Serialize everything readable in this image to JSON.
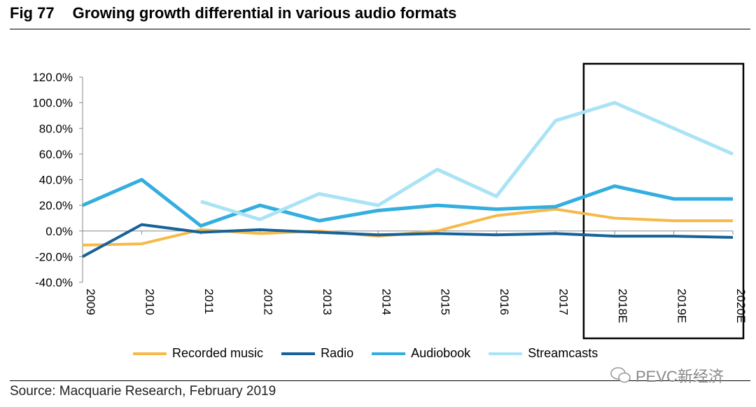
{
  "figure": {
    "label": "Fig 77",
    "title": "Growing growth differential in various audio formats"
  },
  "source": "Source: Macquarie Research, February 2019",
  "watermark": "PEVC新经济",
  "chart_data": {
    "type": "line",
    "title": "Growing growth differential in various audio formats",
    "categories": [
      "2009",
      "2010",
      "2011",
      "2012",
      "2013",
      "2014",
      "2015",
      "2016",
      "2017",
      "2018E",
      "2019E",
      "2020E"
    ],
    "ylim": [
      -40,
      120
    ],
    "yticks": [
      "-40.0%",
      "-20.0%",
      "0.0%",
      "20.0%",
      "40.0%",
      "60.0%",
      "80.0%",
      "100.0%",
      "120.0%"
    ],
    "ytick_values": [
      -40,
      -20,
      0,
      20,
      40,
      60,
      80,
      100,
      120
    ],
    "highlight_categories": [
      "2018E",
      "2019E",
      "2020E"
    ],
    "legend_position": "bottom",
    "series": [
      {
        "name": "Recorded music",
        "color": "#F6B94A",
        "values": [
          -11,
          -10,
          1,
          -2,
          0,
          -4,
          0,
          12,
          17,
          10,
          8,
          8
        ]
      },
      {
        "name": "Radio",
        "color": "#16629A",
        "values": [
          -20,
          5,
          -1,
          1,
          -1,
          -3,
          -2,
          -3,
          -2,
          -4,
          -4,
          -5
        ]
      },
      {
        "name": "Audiobook",
        "color": "#33AEDF",
        "values": [
          20,
          40,
          4,
          20,
          8,
          16,
          20,
          17,
          19,
          35,
          25,
          25
        ]
      },
      {
        "name": "Streamcasts",
        "color": "#A9E3F5",
        "values": [
          null,
          null,
          23,
          9,
          29,
          20,
          48,
          27,
          86,
          100,
          80,
          60
        ]
      }
    ]
  }
}
